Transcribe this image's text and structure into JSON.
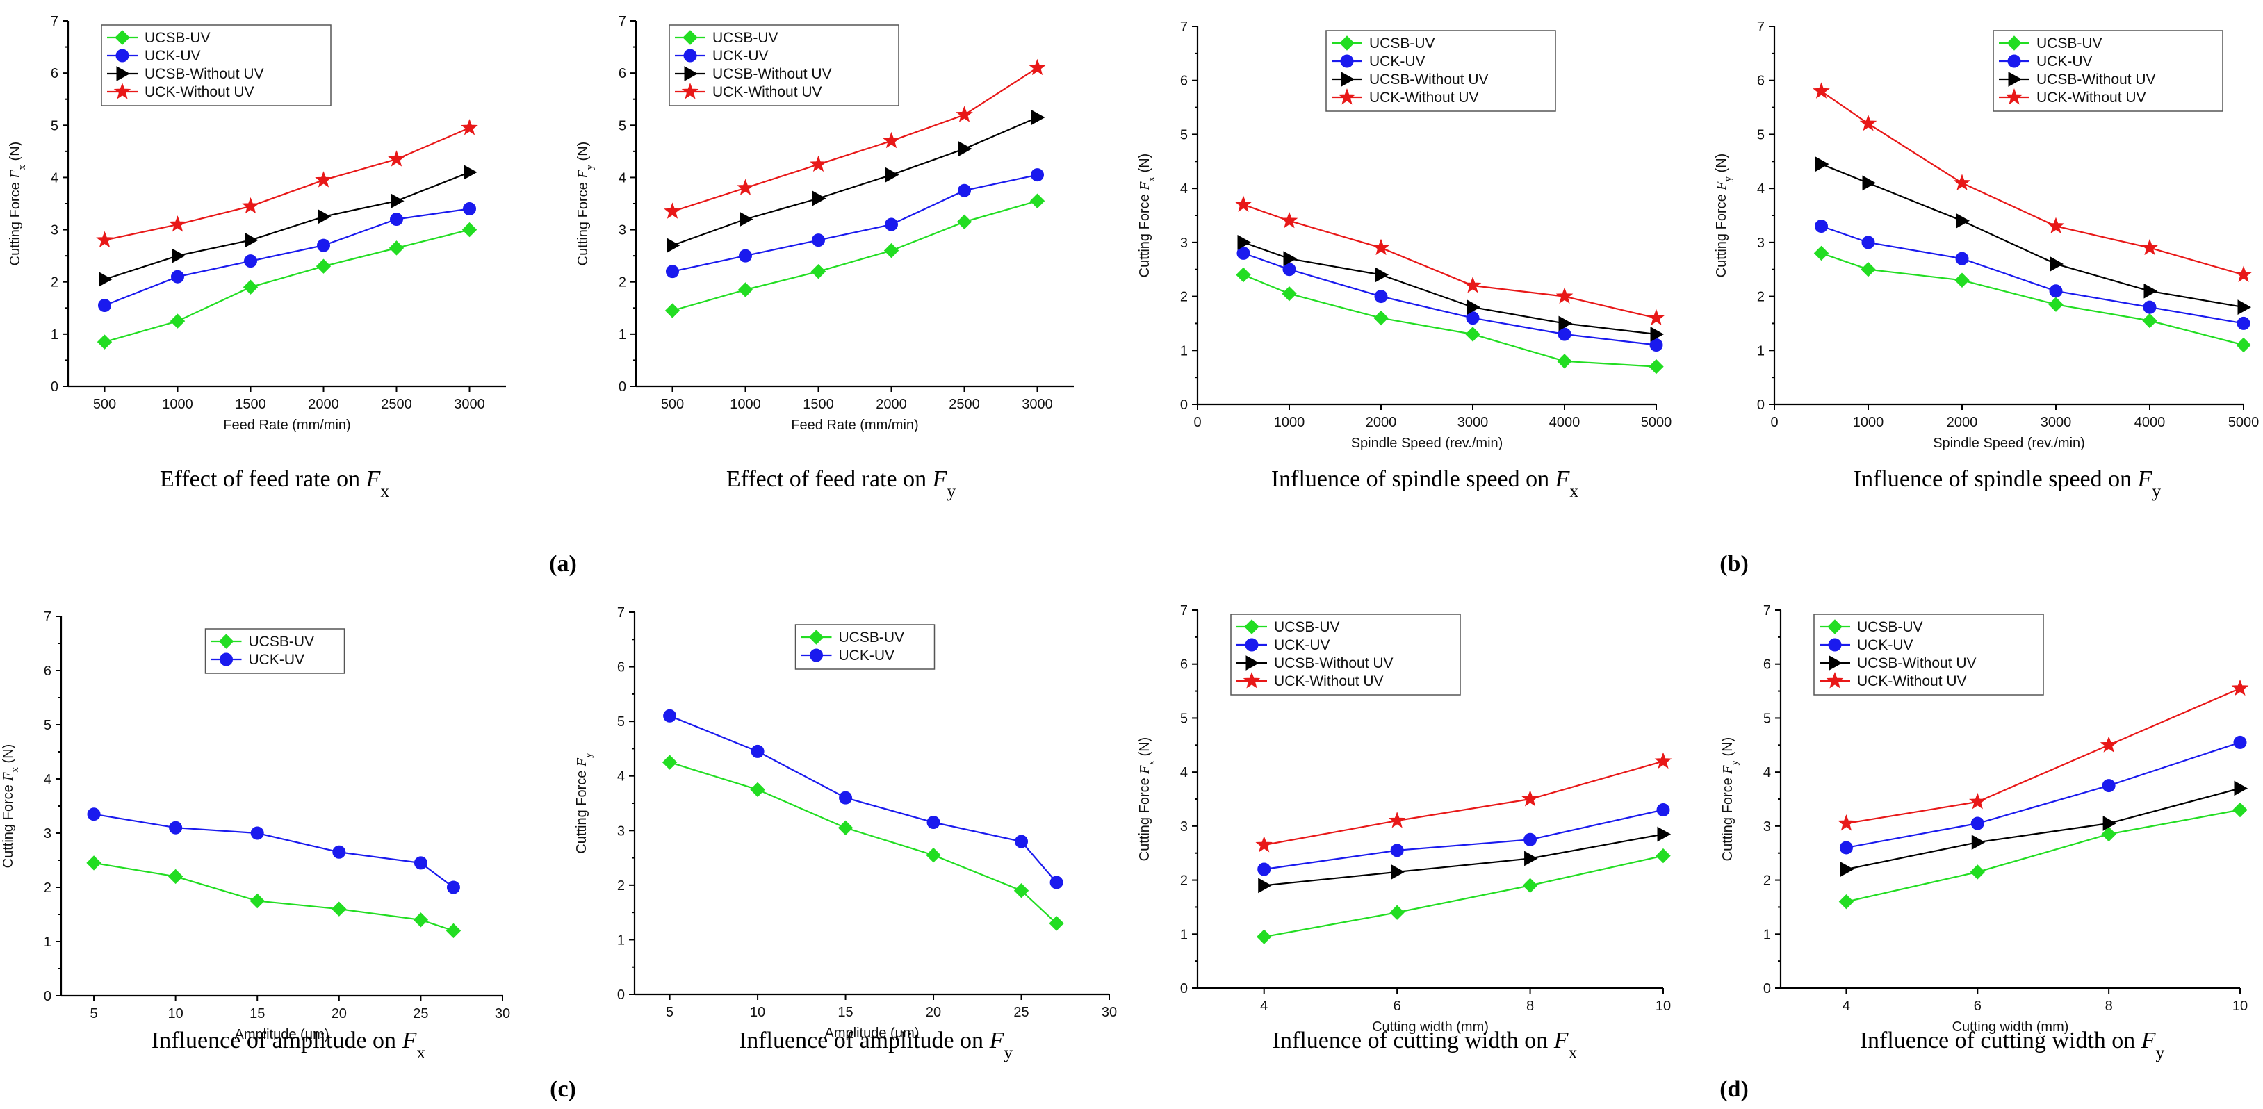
{
  "colors": {
    "UCSB-UV": "#22dd22",
    "UCK-UV": "#1a1aee",
    "UCSB-Without UV": "#000000",
    "UCK-Without UV": "#e81818"
  },
  "markers": {
    "UCSB-UV": "diamond",
    "UCK-UV": "circle",
    "UCSB-Without UV": "triangle-right",
    "UCK-Without UV": "star"
  },
  "panel_labels": [
    "(a)",
    "(b)",
    "(c)",
    "(d)"
  ],
  "chart_data": [
    {
      "type": "line",
      "id": "feed-fx",
      "caption": "Effect of feed rate on ",
      "caption_var": "F",
      "caption_sub": "x",
      "xlabel": "Feed Rate (mm/min)",
      "ylabel": "Cutting Force ",
      "ylabel_var": "F",
      "ylabel_sub": "x",
      "ylabel_unit": " (N)",
      "xlim": [
        250,
        3250
      ],
      "ylim": [
        0,
        7
      ],
      "xticks": [
        500,
        1000,
        1500,
        2000,
        2500,
        3000
      ],
      "yticks": [
        0,
        1,
        2,
        3,
        4,
        5,
        6,
        7
      ],
      "legend_pos": "top-left",
      "x": [
        500,
        1000,
        1500,
        2000,
        2500,
        3000
      ],
      "series": [
        {
          "name": "UCSB-UV",
          "values": [
            0.85,
            1.25,
            1.9,
            2.3,
            2.65,
            3.0
          ]
        },
        {
          "name": "UCK-UV",
          "values": [
            1.55,
            2.1,
            2.4,
            2.7,
            3.2,
            3.4
          ]
        },
        {
          "name": "UCSB-Without UV",
          "values": [
            2.05,
            2.5,
            2.8,
            3.25,
            3.55,
            4.1
          ]
        },
        {
          "name": "UCK-Without UV",
          "values": [
            2.8,
            3.1,
            3.45,
            3.95,
            4.35,
            4.95
          ]
        }
      ]
    },
    {
      "type": "line",
      "id": "feed-fy",
      "caption": "Effect of feed rate on ",
      "caption_var": "F",
      "caption_sub": "y",
      "xlabel": "Feed Rate (mm/min)",
      "ylabel": "Cutting Force ",
      "ylabel_var": "F",
      "ylabel_sub": "y",
      "ylabel_unit": " (N)",
      "xlim": [
        250,
        3250
      ],
      "ylim": [
        0,
        7
      ],
      "xticks": [
        500,
        1000,
        1500,
        2000,
        2500,
        3000
      ],
      "yticks": [
        0,
        1,
        2,
        3,
        4,
        5,
        6,
        7
      ],
      "legend_pos": "top-left",
      "x": [
        500,
        1000,
        1500,
        2000,
        2500,
        3000
      ],
      "series": [
        {
          "name": "UCSB-UV",
          "values": [
            1.45,
            1.85,
            2.2,
            2.6,
            3.15,
            3.55
          ]
        },
        {
          "name": "UCK-UV",
          "values": [
            2.2,
            2.5,
            2.8,
            3.1,
            3.75,
            4.05
          ]
        },
        {
          "name": "UCSB-Without UV",
          "values": [
            2.7,
            3.2,
            3.6,
            4.05,
            4.55,
            5.15
          ]
        },
        {
          "name": "UCK-Without UV",
          "values": [
            3.35,
            3.8,
            4.25,
            4.7,
            5.2,
            6.1
          ]
        }
      ]
    },
    {
      "type": "line",
      "id": "spindle-fx",
      "caption": "Influence of spindle speed on ",
      "caption_var": "F",
      "caption_sub": "x",
      "xlabel": "Spindle Speed (rev./min)",
      "ylabel": "Cutting Force ",
      "ylabel_var": "F",
      "ylabel_sub": "x",
      "ylabel_unit": " (N)",
      "xlim": [
        0,
        5000
      ],
      "ylim": [
        0,
        7
      ],
      "xticks": [
        0,
        1000,
        2000,
        3000,
        4000,
        5000
      ],
      "yticks": [
        0,
        1,
        2,
        3,
        4,
        5,
        6,
        7
      ],
      "legend_pos": "top-center",
      "x": [
        500,
        1000,
        2000,
        3000,
        4000,
        5000
      ],
      "series": [
        {
          "name": "UCSB-UV",
          "values": [
            2.4,
            2.05,
            1.6,
            1.3,
            0.8,
            0.7
          ]
        },
        {
          "name": "UCK-UV",
          "values": [
            2.8,
            2.5,
            2.0,
            1.6,
            1.3,
            1.1
          ]
        },
        {
          "name": "UCSB-Without UV",
          "values": [
            3.0,
            2.7,
            2.4,
            1.8,
            1.5,
            1.3
          ]
        },
        {
          "name": "UCK-Without UV",
          "values": [
            3.7,
            3.4,
            2.9,
            2.2,
            2.0,
            1.6
          ]
        }
      ]
    },
    {
      "type": "line",
      "id": "spindle-fy",
      "caption": "Influence of spindle speed on ",
      "caption_var": "F",
      "caption_sub": "y",
      "xlabel": "Spindle Speed (rev./min)",
      "ylabel": "Cutting Force ",
      "ylabel_var": "F",
      "ylabel_sub": "y",
      "ylabel_unit": " (N)",
      "xlim": [
        0,
        5000
      ],
      "ylim": [
        0,
        7
      ],
      "xticks": [
        0,
        1000,
        2000,
        3000,
        4000,
        5000
      ],
      "yticks": [
        0,
        1,
        2,
        3,
        4,
        5,
        6,
        7
      ],
      "legend_pos": "top-right",
      "x": [
        500,
        1000,
        2000,
        3000,
        4000,
        5000
      ],
      "series": [
        {
          "name": "UCSB-UV",
          "values": [
            2.8,
            2.5,
            2.3,
            1.85,
            1.55,
            1.1
          ]
        },
        {
          "name": "UCK-UV",
          "values": [
            3.3,
            3.0,
            2.7,
            2.1,
            1.8,
            1.5
          ]
        },
        {
          "name": "UCSB-Without UV",
          "values": [
            4.45,
            4.1,
            3.4,
            2.6,
            2.1,
            1.8
          ]
        },
        {
          "name": "UCK-Without UV",
          "values": [
            5.8,
            5.2,
            4.1,
            3.3,
            2.9,
            2.4
          ]
        }
      ]
    },
    {
      "type": "line",
      "id": "amplitude-fx",
      "caption": "Influence of amplitude on ",
      "caption_var": "F",
      "caption_sub": "x",
      "xlabel": "Amplitude (μm)",
      "ylabel": "Cutting Force ",
      "ylabel_var": "F",
      "ylabel_sub": "x",
      "ylabel_unit": " (N)",
      "xlim": [
        3,
        30
      ],
      "ylim": [
        0,
        7
      ],
      "xticks": [
        5,
        10,
        15,
        20,
        25,
        30
      ],
      "yticks": [
        0,
        1,
        2,
        3,
        4,
        5,
        6,
        7
      ],
      "legend_pos": "top-center",
      "x": [
        5,
        10,
        15,
        20,
        25,
        27
      ],
      "series": [
        {
          "name": "UCSB-UV",
          "values": [
            2.45,
            2.2,
            1.75,
            1.6,
            1.4,
            1.2
          ]
        },
        {
          "name": "UCK-UV",
          "values": [
            3.35,
            3.1,
            3.0,
            2.65,
            2.45,
            2.0
          ]
        }
      ]
    },
    {
      "type": "line",
      "id": "amplitude-fy",
      "caption": "Influence of amplitude on ",
      "caption_var": "F",
      "caption_sub": "y",
      "xlabel": "Amplitude (μm)",
      "ylabel": "Cutting Force ",
      "ylabel_var": "F",
      "ylabel_sub": "y",
      "ylabel_unit": "",
      "xlim": [
        3,
        30
      ],
      "ylim": [
        0,
        7
      ],
      "xticks": [
        5,
        10,
        15,
        20,
        25,
        30
      ],
      "yticks": [
        0,
        1,
        2,
        3,
        4,
        5,
        6,
        7
      ],
      "legend_pos": "top-center",
      "x": [
        5,
        10,
        15,
        20,
        25,
        27
      ],
      "series": [
        {
          "name": "UCSB-UV",
          "values": [
            4.25,
            3.75,
            3.05,
            2.55,
            1.9,
            1.3
          ]
        },
        {
          "name": "UCK-UV",
          "values": [
            5.1,
            4.45,
            3.6,
            3.15,
            2.8,
            2.05
          ]
        }
      ]
    },
    {
      "type": "line",
      "id": "width-fx",
      "caption": "Influence of cutting width on ",
      "caption_var": "F",
      "caption_sub": "x",
      "xlabel": "Cutting width (mm)",
      "ylabel": "Cutting Force ",
      "ylabel_var": "F",
      "ylabel_sub": "x",
      "ylabel_unit": " (N)",
      "xlim": [
        3,
        10
      ],
      "ylim": [
        0,
        7
      ],
      "xticks": [
        4,
        6,
        8,
        10
      ],
      "yticks": [
        0,
        1,
        2,
        3,
        4,
        5,
        6,
        7
      ],
      "legend_pos": "top-left",
      "x": [
        4,
        6,
        8,
        10
      ],
      "series": [
        {
          "name": "UCSB-UV",
          "values": [
            0.95,
            1.4,
            1.9,
            2.45
          ]
        },
        {
          "name": "UCK-UV",
          "values": [
            2.2,
            2.55,
            2.75,
            3.3
          ]
        },
        {
          "name": "UCSB-Without UV",
          "values": [
            1.9,
            2.15,
            2.4,
            2.85
          ]
        },
        {
          "name": "UCK-Without UV",
          "values": [
            2.65,
            3.1,
            3.5,
            4.2
          ]
        }
      ]
    },
    {
      "type": "line",
      "id": "width-fy",
      "caption": "Influence of cutting width on ",
      "caption_var": "F",
      "caption_sub": "y",
      "xlabel": "Cutting width (mm)",
      "ylabel": "Cutting Force ",
      "ylabel_var": "F",
      "ylabel_sub": "y",
      "ylabel_unit": " (N)",
      "xlim": [
        3,
        10
      ],
      "ylim": [
        0,
        7
      ],
      "xticks": [
        4,
        6,
        8,
        10
      ],
      "yticks": [
        0,
        1,
        2,
        3,
        4,
        5,
        6,
        7
      ],
      "legend_pos": "top-left",
      "x": [
        4,
        6,
        8,
        10
      ],
      "series": [
        {
          "name": "UCSB-UV",
          "values": [
            1.6,
            2.15,
            2.85,
            3.3
          ]
        },
        {
          "name": "UCK-UV",
          "values": [
            2.6,
            3.05,
            3.75,
            4.55
          ]
        },
        {
          "name": "UCSB-Without UV",
          "values": [
            2.2,
            2.7,
            3.05,
            3.7
          ]
        },
        {
          "name": "UCK-Without UV",
          "values": [
            3.05,
            3.45,
            4.5,
            5.55
          ]
        }
      ]
    }
  ]
}
